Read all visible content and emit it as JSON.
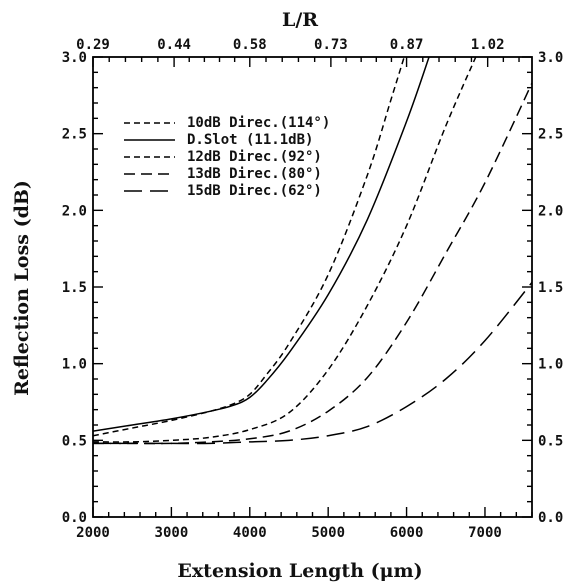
{
  "chart_data": {
    "type": "line",
    "xlabel": "Extension Length (μm)",
    "ylabel": "Reflection Loss (dB)",
    "top_xlabel": "L/R",
    "xlim": [
      2000,
      7600
    ],
    "ylim": [
      0.0,
      3.0
    ],
    "x_ticks": [
      2000,
      3000,
      4000,
      5000,
      6000,
      7000
    ],
    "x_tick_labels": [
      "2000",
      "3000",
      "4000",
      "5000",
      "6000",
      "7000"
    ],
    "y_ticks": [
      0.0,
      0.5,
      1.0,
      1.5,
      2.0,
      2.5,
      3.0
    ],
    "y_tick_labels": [
      "0.0",
      "0.5",
      "1.0",
      "1.5",
      "2.0",
      "2.5",
      "3.0"
    ],
    "top_ticks": [
      0.29,
      0.44,
      0.58,
      0.73,
      0.87,
      1.02
    ],
    "top_tick_labels": [
      "0.29",
      "0.44",
      "0.58",
      "0.73",
      "0.87",
      "1.02"
    ],
    "legend": {
      "placement": "top-left"
    },
    "series": [
      {
        "name": "10dB Direc.(114°)",
        "dash": "short",
        "x": [
          2000,
          2500,
          3000,
          3500,
          3800,
          4000,
          4200,
          4500,
          5000,
          5500,
          5800,
          6000
        ],
        "y": [
          0.53,
          0.58,
          0.63,
          0.69,
          0.74,
          0.8,
          0.92,
          1.13,
          1.58,
          2.23,
          2.72,
          3.05
        ]
      },
      {
        "name": "D.Slot (11.1dB)",
        "dash": "solid",
        "x": [
          2000,
          2500,
          3000,
          3500,
          3800,
          4000,
          4200,
          4500,
          5000,
          5500,
          6000,
          6300
        ],
        "y": [
          0.56,
          0.6,
          0.64,
          0.69,
          0.73,
          0.78,
          0.88,
          1.07,
          1.45,
          1.94,
          2.58,
          3.02
        ]
      },
      {
        "name": "12dB Direc.(92°)",
        "dash": "short",
        "x": [
          2000,
          2500,
          3000,
          3500,
          4000,
          4500,
          5000,
          5500,
          6000,
          6500,
          6900
        ],
        "y": [
          0.49,
          0.49,
          0.5,
          0.52,
          0.57,
          0.68,
          0.96,
          1.38,
          1.9,
          2.55,
          3.02
        ]
      },
      {
        "name": "13dB Direc.(80°)",
        "dash": "medium",
        "x": [
          2000,
          2500,
          3000,
          3500,
          4000,
          4500,
          5000,
          5500,
          6000,
          6500,
          7000,
          7600
        ],
        "y": [
          0.48,
          0.48,
          0.48,
          0.49,
          0.51,
          0.56,
          0.69,
          0.91,
          1.27,
          1.72,
          2.18,
          2.83
        ]
      },
      {
        "name": "15dB Direc.(62°)",
        "dash": "long",
        "x": [
          2000,
          2500,
          3000,
          3500,
          4000,
          4500,
          5000,
          5500,
          6000,
          6500,
          7000,
          7600
        ],
        "y": [
          0.48,
          0.48,
          0.48,
          0.48,
          0.49,
          0.5,
          0.53,
          0.59,
          0.72,
          0.9,
          1.15,
          1.53
        ]
      }
    ]
  }
}
